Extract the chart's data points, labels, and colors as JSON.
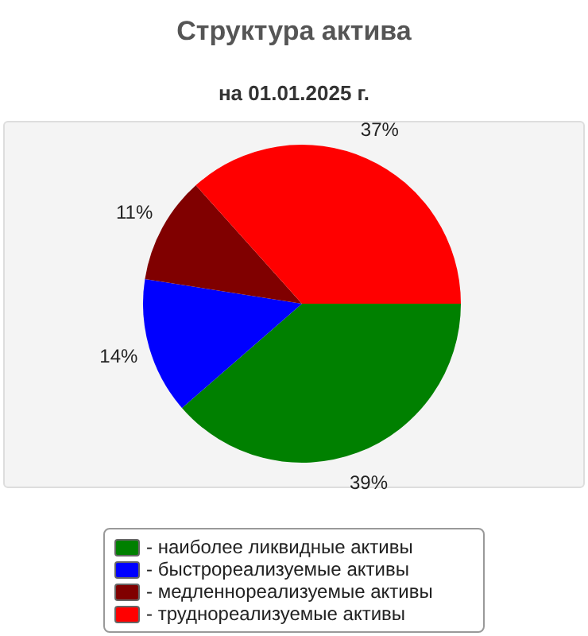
{
  "chart_data": {
    "type": "pie",
    "title": "Структура актива",
    "subtitle": "на 01.01.2025 г.",
    "categories": [
      "- наиболее ликвидные активы",
      "- быстрореализуемые активы",
      "- медленнореализуемые активы",
      "- труднореализуемые активы"
    ],
    "values": [
      39,
      14,
      11,
      37
    ],
    "value_labels": [
      "39%",
      "14%",
      "11%",
      "37%"
    ],
    "colors": [
      "#008000",
      "#0000ff",
      "#800000",
      "#ff0000"
    ],
    "legend": "bottom"
  }
}
